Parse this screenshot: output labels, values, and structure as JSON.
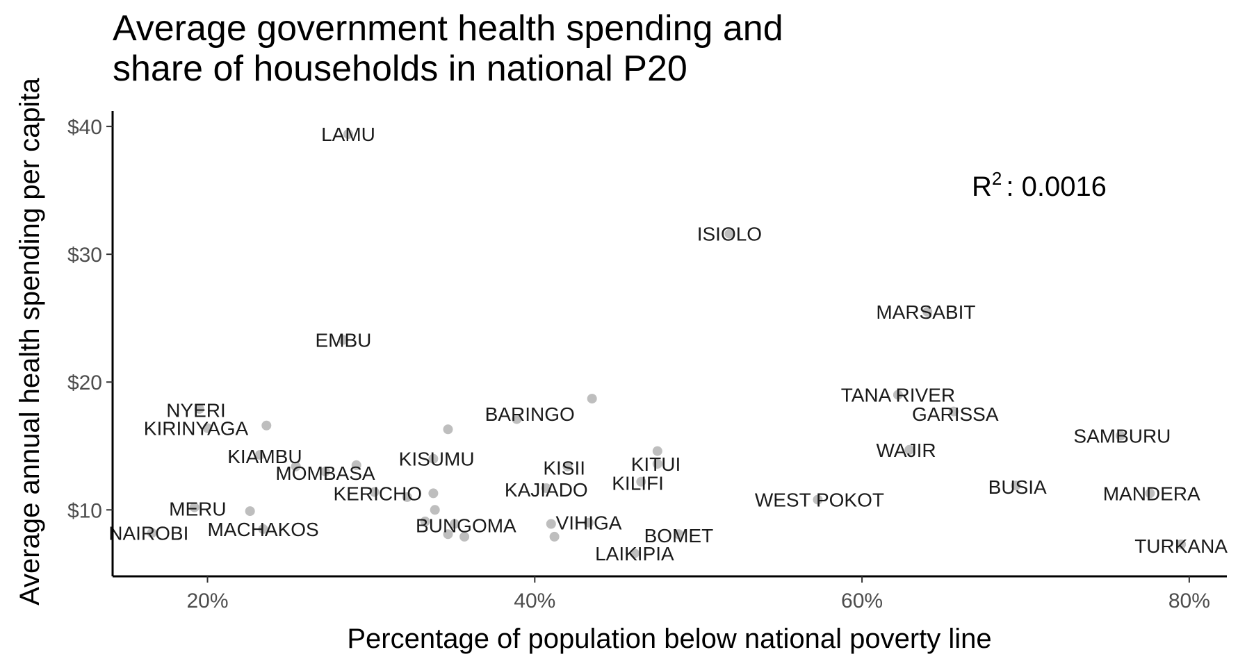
{
  "chart_data": {
    "type": "scatter",
    "title_lines": [
      "Average government health spending and",
      "share of households in national P20"
    ],
    "xlabel": "Percentage of population below national poverty line",
    "ylabel": "Average annual health spending per capita",
    "xlim": [
      14.2,
      82.3
    ],
    "ylim": [
      4.8,
      41.2
    ],
    "x_ticks": [
      {
        "value": 20,
        "label": "20%"
      },
      {
        "value": 40,
        "label": "40%"
      },
      {
        "value": 60,
        "label": "60%"
      },
      {
        "value": 80,
        "label": "80%"
      }
    ],
    "y_ticks": [
      {
        "value": 10,
        "label": "$10"
      },
      {
        "value": 20,
        "label": "$20"
      },
      {
        "value": 30,
        "label": "$30"
      },
      {
        "value": 40,
        "label": "$40"
      }
    ],
    "annotation": {
      "base": "R",
      "sup": "2",
      "text": ": 0.0016"
    },
    "point_color": "#bebebe",
    "grid": false,
    "points": [
      {
        "x": 28.6,
        "y": 39.4
      },
      {
        "x": 51.9,
        "y": 31.6
      },
      {
        "x": 64.0,
        "y": 25.5
      },
      {
        "x": 28.3,
        "y": 23.3
      },
      {
        "x": 43.5,
        "y": 18.7
      },
      {
        "x": 62.2,
        "y": 19.0
      },
      {
        "x": 65.6,
        "y": 17.7
      },
      {
        "x": 75.8,
        "y": 15.8
      },
      {
        "x": 19.5,
        "y": 17.9
      },
      {
        "x": 23.6,
        "y": 16.6
      },
      {
        "x": 20.0,
        "y": 16.4
      },
      {
        "x": 34.7,
        "y": 16.3
      },
      {
        "x": 38.9,
        "y": 17.1
      },
      {
        "x": 62.9,
        "y": 14.7
      },
      {
        "x": 47.5,
        "y": 14.6
      },
      {
        "x": 47.5,
        "y": 13.6
      },
      {
        "x": 23.2,
        "y": 14.3
      },
      {
        "x": 25.4,
        "y": 13.4
      },
      {
        "x": 33.8,
        "y": 14.0
      },
      {
        "x": 29.1,
        "y": 13.5
      },
      {
        "x": 27.2,
        "y": 13.0
      },
      {
        "x": 42.0,
        "y": 13.4
      },
      {
        "x": 46.5,
        "y": 12.2
      },
      {
        "x": 40.7,
        "y": 11.7
      },
      {
        "x": 33.8,
        "y": 11.3
      },
      {
        "x": 30.2,
        "y": 11.4
      },
      {
        "x": 32.2,
        "y": 11.0
      },
      {
        "x": 69.4,
        "y": 11.9
      },
      {
        "x": 77.6,
        "y": 11.3
      },
      {
        "x": 57.3,
        "y": 10.8
      },
      {
        "x": 19.2,
        "y": 10.2
      },
      {
        "x": 22.6,
        "y": 9.9
      },
      {
        "x": 33.9,
        "y": 10.0
      },
      {
        "x": 33.3,
        "y": 9.1
      },
      {
        "x": 35.1,
        "y": 8.9
      },
      {
        "x": 41.0,
        "y": 8.9
      },
      {
        "x": 43.3,
        "y": 9.0
      },
      {
        "x": 23.4,
        "y": 8.5
      },
      {
        "x": 16.6,
        "y": 8.2
      },
      {
        "x": 34.7,
        "y": 8.1
      },
      {
        "x": 35.7,
        "y": 7.9
      },
      {
        "x": 41.2,
        "y": 7.9
      },
      {
        "x": 48.8,
        "y": 8.1
      },
      {
        "x": 79.5,
        "y": 7.3
      },
      {
        "x": 46.1,
        "y": 6.6
      }
    ],
    "labels": [
      {
        "text": "LAMU",
        "x": 28.6,
        "y": 39.4
      },
      {
        "text": "ISIOLO",
        "x": 51.9,
        "y": 31.6
      },
      {
        "text": "MARSABIT",
        "x": 63.9,
        "y": 25.5
      },
      {
        "text": "EMBU",
        "x": 28.3,
        "y": 23.3
      },
      {
        "text": "TANA RIVER",
        "x": 62.2,
        "y": 19.0
      },
      {
        "text": "GARISSA",
        "x": 65.7,
        "y": 17.5
      },
      {
        "text": "BARINGO",
        "x": 39.7,
        "y": 17.5
      },
      {
        "text": "NYERI",
        "x": 19.3,
        "y": 17.8
      },
      {
        "text": "KIRINYAGA",
        "x": 19.3,
        "y": 16.4
      },
      {
        "text": "SAMBURU",
        "x": 75.9,
        "y": 15.8
      },
      {
        "text": "WAJIR",
        "x": 62.7,
        "y": 14.7
      },
      {
        "text": "KIAMBU",
        "x": 23.5,
        "y": 14.2
      },
      {
        "text": "KISUMU",
        "x": 34.0,
        "y": 14.0
      },
      {
        "text": "KITUI",
        "x": 47.4,
        "y": 13.6
      },
      {
        "text": "KISII",
        "x": 41.8,
        "y": 13.3
      },
      {
        "text": "MOMBASA",
        "x": 27.2,
        "y": 12.9
      },
      {
        "text": "KILIFI",
        "x": 46.3,
        "y": 12.1
      },
      {
        "text": "KAJIADO",
        "x": 40.7,
        "y": 11.6
      },
      {
        "text": "KERICHO",
        "x": 30.4,
        "y": 11.3
      },
      {
        "text": "BUSIA",
        "x": 69.5,
        "y": 11.8
      },
      {
        "text": "MANDERA",
        "x": 77.7,
        "y": 11.3
      },
      {
        "text": "WEST POKOT",
        "x": 57.4,
        "y": 10.8
      },
      {
        "text": "MERU",
        "x": 19.4,
        "y": 10.1
      },
      {
        "text": "VIHIGA",
        "x": 43.3,
        "y": 9.0
      },
      {
        "text": "BUNGOMA",
        "x": 35.8,
        "y": 8.8
      },
      {
        "text": "MACHAKOS",
        "x": 23.4,
        "y": 8.5
      },
      {
        "text": "NAIROBI",
        "x": 16.4,
        "y": 8.2
      },
      {
        "text": "BOMET",
        "x": 48.8,
        "y": 8.0
      },
      {
        "text": "TURKANA",
        "x": 79.5,
        "y": 7.2
      },
      {
        "text": "LAIKIPIA",
        "x": 46.1,
        "y": 6.6
      }
    ]
  }
}
